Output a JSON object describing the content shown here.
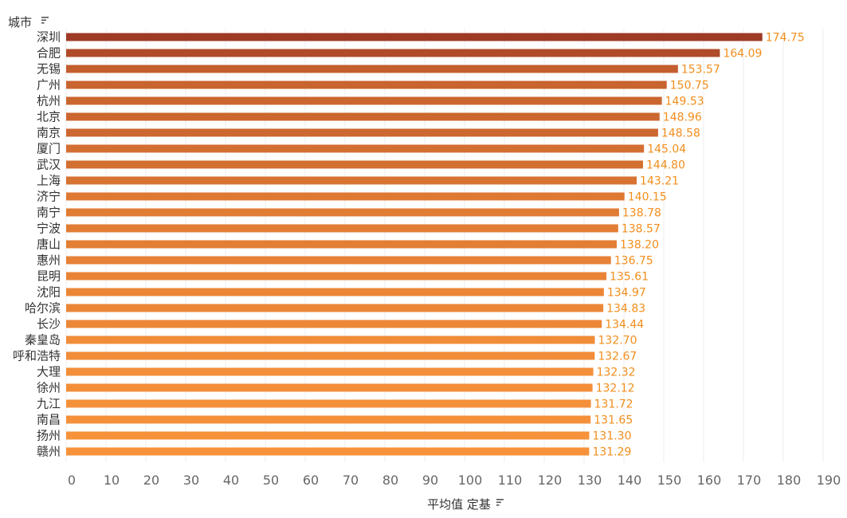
{
  "chart_data": {
    "type": "bar",
    "orientation": "horizontal",
    "y_header": "城市",
    "xlabel": "平均值 定基",
    "xlim": [
      0,
      190
    ],
    "xticks": [
      0,
      10,
      20,
      30,
      40,
      50,
      60,
      70,
      80,
      90,
      100,
      110,
      120,
      130,
      140,
      150,
      160,
      170,
      180,
      190
    ],
    "grid": true,
    "sort": "descending",
    "categories": [
      "深圳",
      "合肥",
      "无锡",
      "广州",
      "杭州",
      "北京",
      "南京",
      "厦门",
      "武汉",
      "上海",
      "济宁",
      "南宁",
      "宁波",
      "唐山",
      "惠州",
      "昆明",
      "沈阳",
      "哈尔滨",
      "长沙",
      "秦皇岛",
      "呼和浩特",
      "大理",
      "徐州",
      "九江",
      "南昌",
      "扬州",
      "赣州"
    ],
    "values": [
      174.75,
      164.09,
      153.57,
      150.75,
      149.53,
      148.96,
      148.58,
      145.04,
      144.8,
      143.21,
      140.15,
      138.78,
      138.57,
      138.2,
      136.75,
      135.61,
      134.97,
      134.83,
      134.44,
      132.7,
      132.67,
      132.32,
      132.12,
      131.72,
      131.65,
      131.3,
      131.29
    ],
    "value_labels": [
      "174.75",
      "164.09",
      "153.57",
      "150.75",
      "149.53",
      "148.96",
      "148.58",
      "145.04",
      "144.80",
      "143.21",
      "140.15",
      "138.78",
      "138.57",
      "138.20",
      "136.75",
      "135.61",
      "134.97",
      "134.83",
      "134.44",
      "132.70",
      "132.67",
      "132.32",
      "132.12",
      "131.72",
      "131.65",
      "131.30",
      "131.29"
    ],
    "color_scale": [
      "#f7923a",
      "#9e3a26"
    ],
    "value_label_color": "#f28e1c"
  }
}
